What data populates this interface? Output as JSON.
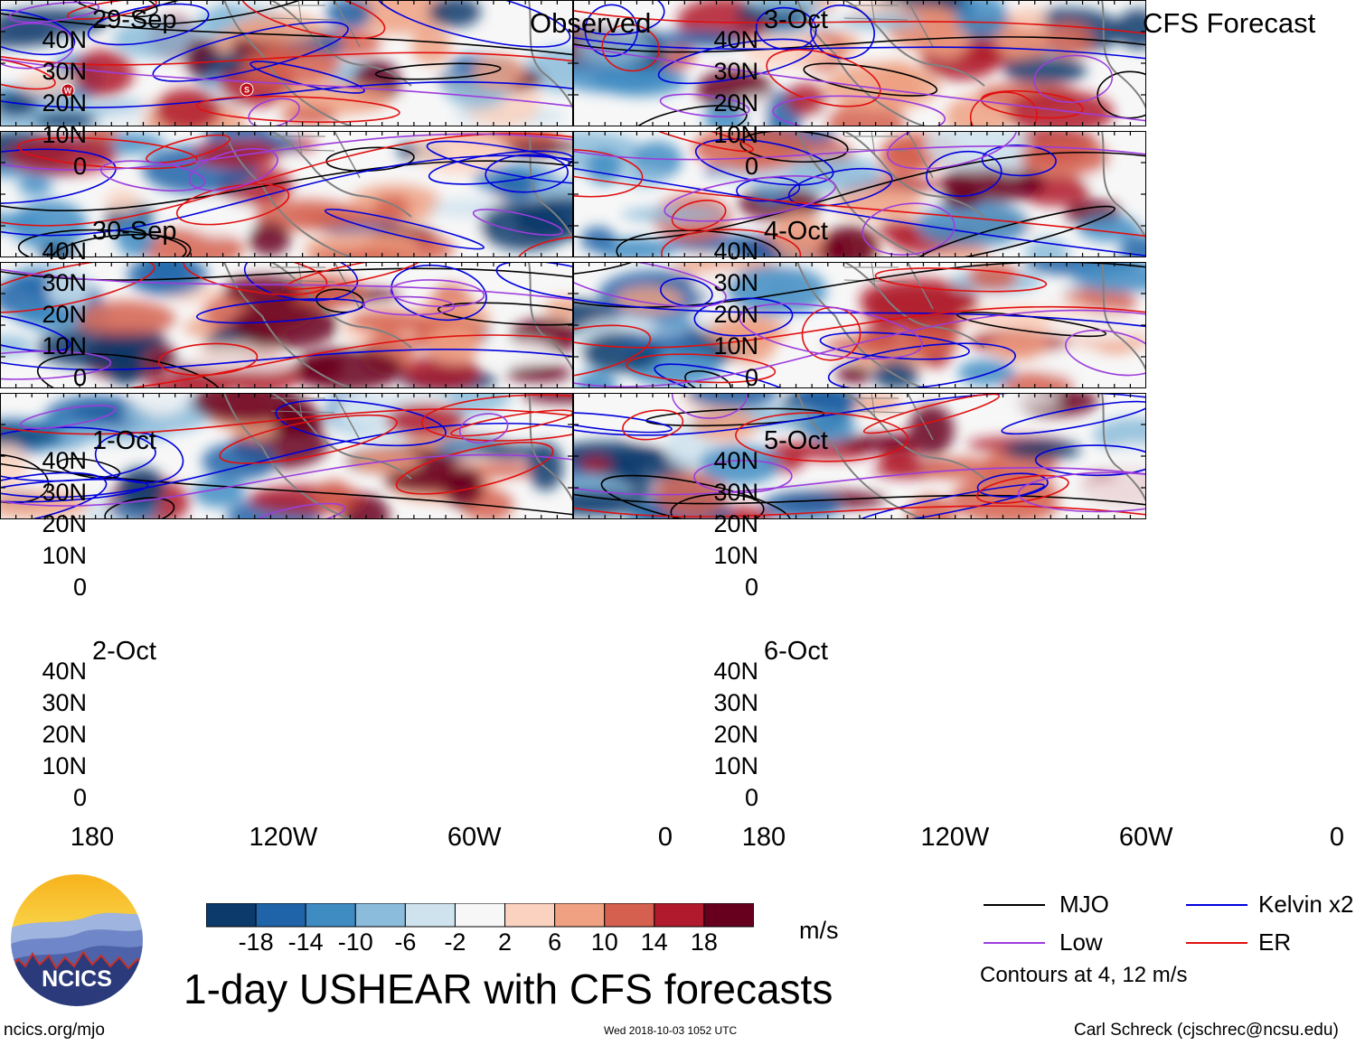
{
  "left_header": "Observed",
  "right_header": "CFS Forecast",
  "lat_labels": [
    "40N",
    "30N",
    "20N",
    "10N",
    "0"
  ],
  "lon_labels": [
    "180",
    "120W",
    "60W",
    "0"
  ],
  "panels": [
    {
      "date": "29-Sep",
      "source": "observed"
    },
    {
      "date": "30-Sep",
      "source": "observed"
    },
    {
      "date": "1-Oct",
      "source": "observed"
    },
    {
      "date": "2-Oct",
      "source": "observed"
    },
    {
      "date": "3-Oct",
      "source": "forecast"
    },
    {
      "date": "4-Oct",
      "source": "forecast"
    },
    {
      "date": "5-Oct",
      "source": "forecast"
    },
    {
      "date": "6-Oct",
      "source": "forecast"
    }
  ],
  "storm_markers": [
    "W",
    "S"
  ],
  "colorbar": {
    "labels": [
      "-18",
      "-14",
      "-10",
      "-6",
      "-2",
      "2",
      "6",
      "10",
      "14",
      "18"
    ],
    "colors": [
      "#0b3a6b",
      "#1f63a8",
      "#3f8cc3",
      "#8bbcdb",
      "#cfe3ef",
      "#f7f7f7",
      "#fbd2bf",
      "#efa182",
      "#d5604f",
      "#b01a2c",
      "#67001f"
    ],
    "units": "m/s"
  },
  "legend": {
    "items": [
      {
        "label": "MJO",
        "color": "#000000"
      },
      {
        "label": "Kelvin x2",
        "color": "#0000dd"
      },
      {
        "label": "Low",
        "color": "#9c3ddc"
      },
      {
        "label": "ER",
        "color": "#e01010"
      }
    ],
    "note": "Contours at 4, 12 m/s"
  },
  "main_title": "1-day USHEAR with CFS forecasts",
  "logo_text": "NCICS",
  "footer": {
    "website": "ncics.org/mjo",
    "timestamp": "Wed 2018-10-03 1052 UTC",
    "credit": "Carl Schreck (cjschrec@ncsu.edu)"
  }
}
